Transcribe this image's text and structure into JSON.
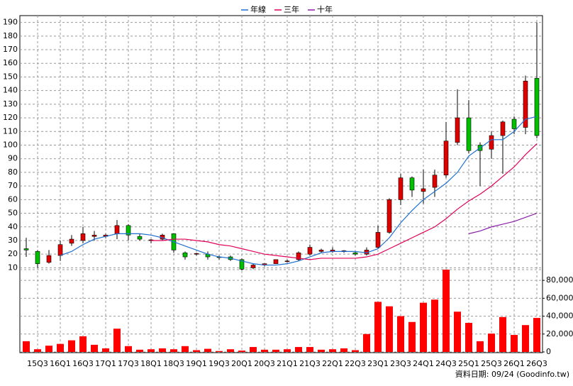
{
  "chart_data": [
    {
      "type": "candlestick",
      "categories": [
        null,
        "15Q3",
        null,
        "16Q1",
        null,
        "16Q3",
        null,
        "17Q1",
        null,
        "17Q3",
        null,
        "18Q1",
        null,
        "18Q3",
        null,
        "19Q1",
        null,
        "19Q3",
        null,
        "20Q1",
        null,
        "20Q3",
        null,
        "21Q1",
        null,
        "21Q3",
        null,
        "22Q1",
        null,
        "22Q3",
        null,
        "23Q1",
        null,
        "23Q3",
        null,
        "24Q1",
        null,
        "24Q3",
        null,
        "25Q1",
        null,
        "25Q3",
        null,
        "26Q1",
        null,
        "26Q3"
      ],
      "open": [
        24,
        22,
        14,
        19,
        28,
        30,
        33,
        33,
        35,
        41,
        33,
        30,
        31,
        35,
        21,
        20,
        20,
        18,
        18,
        16,
        10,
        12,
        13,
        15,
        16,
        20,
        22,
        22,
        22,
        21,
        20,
        25,
        36,
        60,
        76,
        66,
        69,
        78,
        102,
        120,
        100,
        97,
        107,
        119,
        113,
        149
      ],
      "high": [
        32,
        23,
        23,
        30,
        34,
        40,
        37,
        35,
        45,
        42,
        35,
        31,
        35,
        35,
        22,
        21,
        22,
        19,
        19,
        17,
        13,
        13,
        16,
        16,
        22,
        27,
        24,
        25,
        23,
        22,
        25,
        41,
        61,
        79,
        77,
        82,
        82,
        117,
        141,
        133,
        102,
        110,
        118,
        121,
        151,
        190
      ],
      "low": [
        18,
        10,
        13,
        15,
        26,
        28,
        30,
        32,
        31,
        30,
        30,
        28,
        30,
        21,
        16,
        19,
        16,
        16,
        15,
        8,
        9,
        11,
        13,
        14,
        15,
        19,
        21,
        21,
        21,
        19,
        19,
        24,
        35,
        56,
        62,
        57,
        62,
        76,
        100,
        94,
        70,
        90,
        79,
        108,
        108,
        105
      ],
      "close": [
        23,
        13,
        19,
        27,
        31,
        35,
        34,
        34,
        41,
        34,
        31,
        30.5,
        34,
        23,
        18,
        20.5,
        18,
        17.5,
        16,
        9,
        12,
        13,
        16,
        15,
        21,
        25,
        23,
        23,
        22.5,
        20,
        23,
        36,
        60,
        76,
        67,
        68,
        78,
        103,
        120,
        96,
        96,
        107,
        117,
        112,
        147,
        107
      ],
      "up_color": "#e00000",
      "down_color": "#00c000",
      "series": [
        {
          "name": "年線",
          "color": "#1e6fd0",
          "values": [
            null,
            null,
            null,
            19,
            22,
            27,
            31,
            33,
            35,
            35,
            35,
            34,
            32,
            29,
            26,
            23,
            20,
            18,
            17,
            15,
            13,
            12,
            12,
            13,
            15,
            18,
            21,
            22,
            22,
            22,
            21,
            24,
            32,
            43,
            52,
            60,
            66,
            72,
            80,
            92,
            98,
            104,
            104,
            110,
            119,
            121
          ]
        },
        {
          "name": "三年",
          "color": "#e0005a",
          "values": [
            null,
            null,
            null,
            null,
            null,
            null,
            null,
            null,
            null,
            null,
            null,
            30,
            30,
            31,
            31,
            30,
            29,
            27,
            26,
            24,
            22,
            20,
            19,
            18,
            17,
            16,
            17,
            17,
            17,
            17,
            18,
            20,
            24,
            28,
            32,
            36,
            40,
            46,
            53,
            59,
            64,
            70,
            77,
            84,
            93,
            101
          ]
        },
        {
          "name": "十年",
          "color": "#8a1ea8",
          "values": [
            null,
            null,
            null,
            null,
            null,
            null,
            null,
            null,
            null,
            null,
            null,
            null,
            null,
            null,
            null,
            null,
            null,
            null,
            null,
            null,
            null,
            null,
            null,
            null,
            null,
            null,
            null,
            null,
            null,
            null,
            null,
            null,
            null,
            null,
            null,
            null,
            null,
            null,
            null,
            35,
            37,
            40,
            42,
            44,
            47,
            50
          ]
        }
      ],
      "ylim": [
        5,
        195
      ],
      "yticks": [
        10,
        20,
        30,
        40,
        50,
        60,
        70,
        80,
        90,
        100,
        110,
        120,
        130,
        140,
        150,
        160,
        170,
        180,
        190
      ],
      "grid": true,
      "legend": "top",
      "source": "資料日期: 09/24 (Goodinfo.tw)"
    },
    {
      "type": "bar",
      "values": [
        12000,
        3000,
        7000,
        9000,
        13000,
        17500,
        8000,
        4000,
        26000,
        6500,
        2500,
        3000,
        4000,
        3000,
        6500,
        2000,
        3500,
        1000,
        3000,
        1500,
        5500,
        2500,
        2500,
        3000,
        5500,
        5500,
        2500,
        3000,
        4000,
        2000,
        20000,
        56000,
        51000,
        40000,
        33500,
        55000,
        58500,
        92000,
        45000,
        32500,
        12000,
        20500,
        39000,
        19000,
        30000,
        38000
      ],
      "color": "#ff0000",
      "ylim": [
        0,
        92000
      ],
      "yticks": [
        0,
        {
          "value": 20000,
          "label": "20,000"
        },
        {
          "value": 40000,
          "label": "40,000"
        },
        {
          "value": 60000,
          "label": "60,000"
        },
        {
          "value": 80000,
          "label": "80,000"
        }
      ],
      "grid": true
    }
  ]
}
